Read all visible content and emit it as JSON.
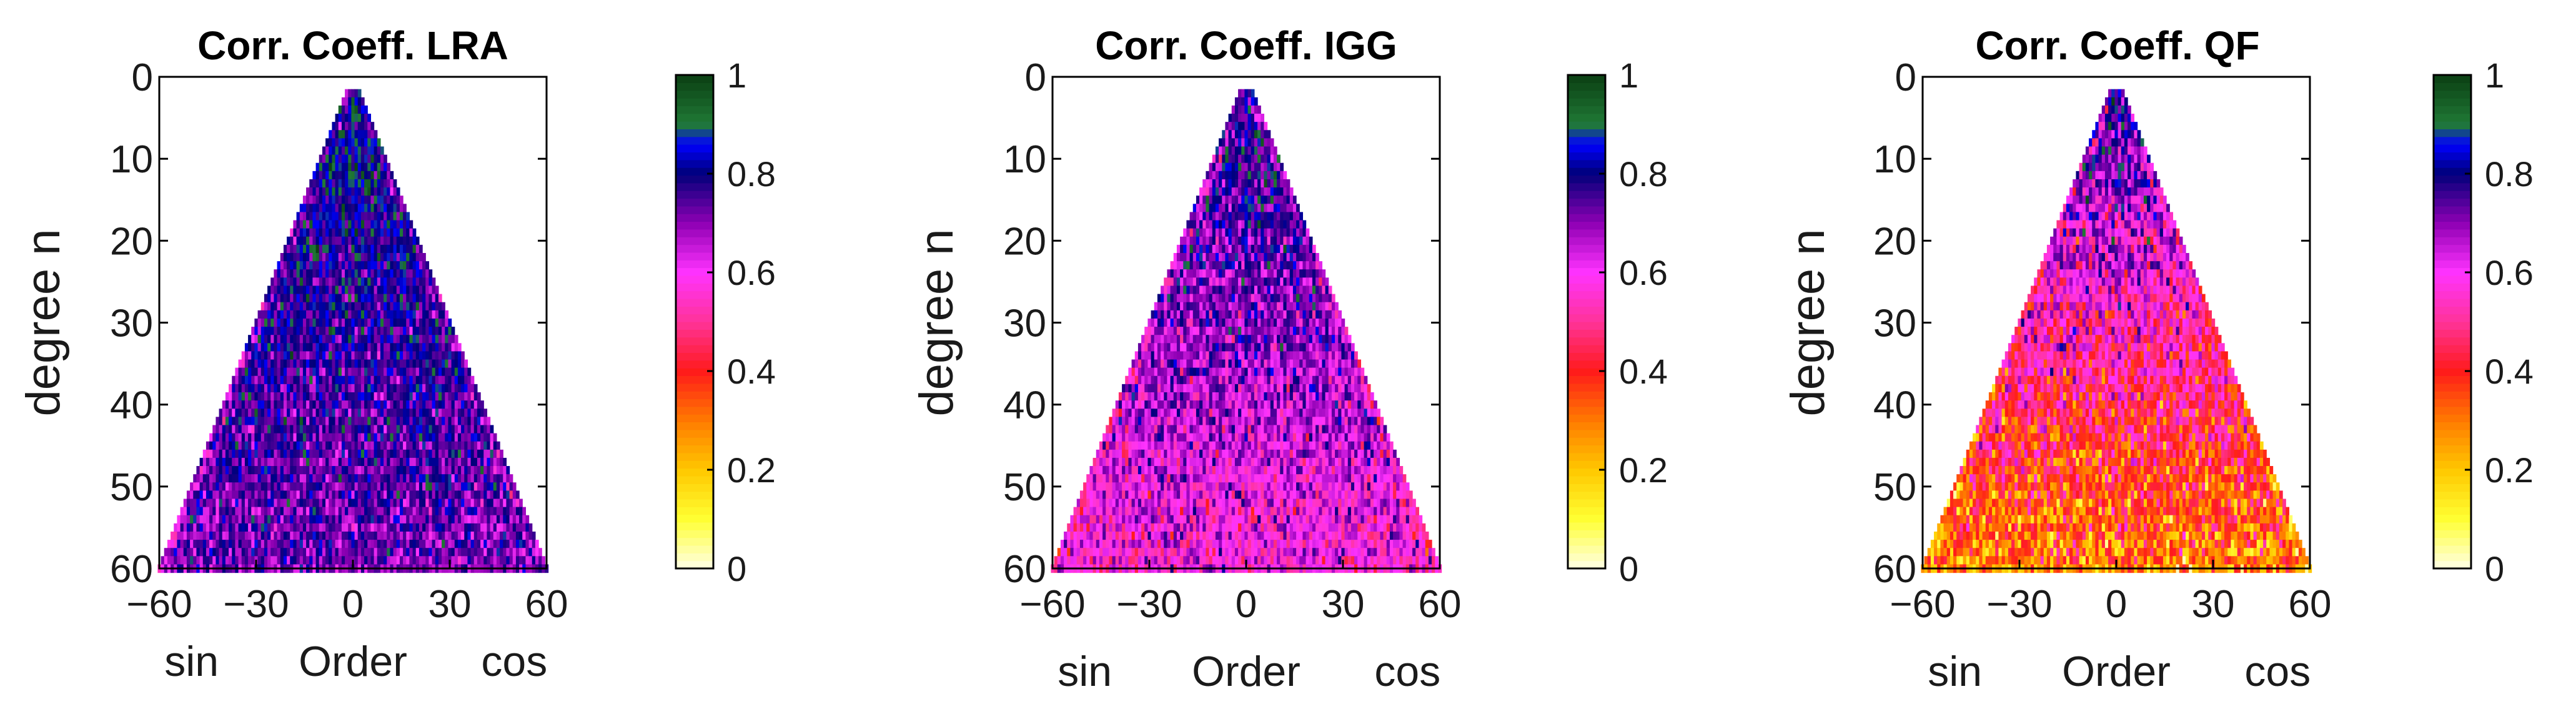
{
  "chart_data": [
    {
      "type": "heatmap",
      "title": "Corr. Coeff. LRA",
      "ylabel": "degree n",
      "xlabel": "Order",
      "x_side_labels": {
        "left": "sin",
        "right": "cos"
      },
      "x_ticks": [
        "−60",
        "−30",
        "0",
        "30",
        "60"
      ],
      "y_ticks": [
        "0",
        "10",
        "20",
        "30",
        "40",
        "50",
        "60"
      ],
      "xlim": [
        -60,
        60
      ],
      "ylim": [
        60,
        0
      ],
      "shape": "triangle",
      "degree_range": [
        2,
        60
      ],
      "value_profile": {
        "low_degree": 0.85,
        "high_degree": 0.72,
        "spread": 0.12
      },
      "colorbar": {
        "range": [
          0,
          1
        ],
        "ticks": [
          "0",
          "0.2",
          "0.4",
          "0.6",
          "0.8",
          "1"
        ]
      }
    },
    {
      "type": "heatmap",
      "title": "Corr. Coeff. IGG",
      "ylabel": "degree n",
      "xlabel": "Order",
      "x_side_labels": {
        "left": "sin",
        "right": "cos"
      },
      "x_ticks": [
        "−60",
        "−30",
        "0",
        "30",
        "60"
      ],
      "y_ticks": [
        "0",
        "10",
        "20",
        "30",
        "40",
        "50",
        "60"
      ],
      "xlim": [
        -60,
        60
      ],
      "ylim": [
        60,
        0
      ],
      "shape": "triangle",
      "degree_range": [
        2,
        60
      ],
      "value_profile": {
        "low_degree": 0.82,
        "high_degree": 0.58,
        "spread": 0.14
      },
      "colorbar": {
        "range": [
          0,
          1
        ],
        "ticks": [
          "0",
          "0.2",
          "0.4",
          "0.6",
          "0.8",
          "1"
        ]
      }
    },
    {
      "type": "heatmap",
      "title": "Corr. Coeff. QF",
      "ylabel": "degree n",
      "xlabel": "Order",
      "x_side_labels": {
        "left": "sin",
        "right": "cos"
      },
      "x_ticks": [
        "−60",
        "−30",
        "0",
        "30",
        "60"
      ],
      "y_ticks": [
        "0",
        "10",
        "20",
        "30",
        "40",
        "50",
        "60"
      ],
      "xlim": [
        -60,
        60
      ],
      "ylim": [
        60,
        0
      ],
      "shape": "triangle",
      "degree_range": [
        2,
        60
      ],
      "value_profile": {
        "low_degree": 0.8,
        "high_degree": 0.28,
        "spread": 0.18
      },
      "colorbar": {
        "range": [
          0,
          1
        ],
        "ticks": [
          "0",
          "0.2",
          "0.4",
          "0.6",
          "0.8",
          "1"
        ]
      }
    }
  ],
  "colormap": {
    "name": "custom",
    "stops": [
      {
        "v": 0.0,
        "c": "#ffffe6"
      },
      {
        "v": 0.1,
        "c": "#ffff33"
      },
      {
        "v": 0.2,
        "c": "#ffc800"
      },
      {
        "v": 0.3,
        "c": "#ff7a00"
      },
      {
        "v": 0.4,
        "c": "#ff1a1a"
      },
      {
        "v": 0.5,
        "c": "#ff3399"
      },
      {
        "v": 0.6,
        "c": "#ff33ff"
      },
      {
        "v": 0.7,
        "c": "#8e00b3"
      },
      {
        "v": 0.8,
        "c": "#00007a"
      },
      {
        "v": 0.86,
        "c": "#0000ff"
      },
      {
        "v": 0.9,
        "c": "#207a36"
      },
      {
        "v": 1.0,
        "c": "#0b3f13"
      }
    ]
  }
}
